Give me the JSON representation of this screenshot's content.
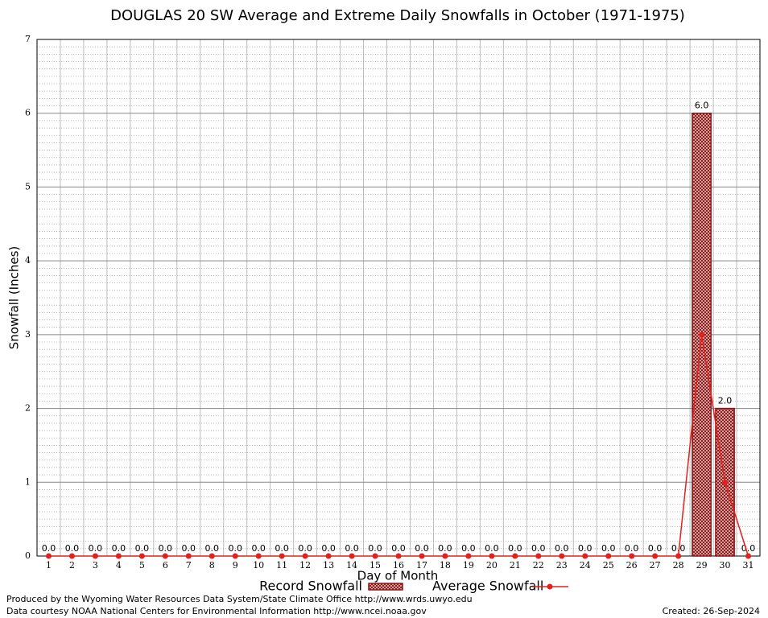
{
  "chart_data": {
    "type": "bar",
    "title": "DOUGLAS 20 SW Average and Extreme Daily Snowfalls in October (1971-1975)",
    "x_label": "Day of Month",
    "y_label": "Snowfall (Inches)",
    "categories": [
      "1",
      "2",
      "3",
      "4",
      "5",
      "6",
      "7",
      "8",
      "9",
      "10",
      "11",
      "12",
      "13",
      "14",
      "15",
      "16",
      "17",
      "18",
      "19",
      "20",
      "21",
      "22",
      "23",
      "24",
      "25",
      "26",
      "27",
      "28",
      "29",
      "30",
      "31"
    ],
    "series": [
      {
        "name": "Record Snowfall",
        "type": "bar",
        "color": "#8b1010",
        "values": [
          0,
          0,
          0,
          0,
          0,
          0,
          0,
          0,
          0,
          0,
          0,
          0,
          0,
          0,
          0,
          0,
          0,
          0,
          0,
          0,
          0,
          0,
          0,
          0,
          0,
          0,
          0,
          0,
          6,
          2,
          0
        ],
        "value_labels": [
          "0.0",
          "0.0",
          "0.0",
          "0.0",
          "0.0",
          "0.0",
          "0.0",
          "0.0",
          "0.0",
          "0.0",
          "0.0",
          "0.0",
          "0.0",
          "0.0",
          "0.0",
          "0.0",
          "0.0",
          "0.0",
          "0.0",
          "0.0",
          "0.0",
          "0.0",
          "0.0",
          "0.0",
          "0.0",
          "0.0",
          "0.0",
          "0.0",
          "6.0",
          "2.0",
          "0.0"
        ]
      },
      {
        "name": "Average Snowfall",
        "type": "line",
        "color": "#e3201e",
        "values": [
          0,
          0,
          0,
          0,
          0,
          0,
          0,
          0,
          0,
          0,
          0,
          0,
          0,
          0,
          0,
          0,
          0,
          0,
          0,
          0,
          0,
          0,
          0,
          0,
          0,
          0,
          0,
          0,
          3,
          1,
          0
        ]
      }
    ],
    "ylim": [
      0,
      7
    ],
    "yticks": [
      0,
      1,
      2,
      3,
      4,
      5,
      6,
      7
    ],
    "grid": true,
    "credits": [
      "Produced by the Wyoming Water Resources Data System/State Climate Office http://www.wrds.uwyo.edu",
      "Data courtesy NOAA National Centers for Environmental Information http://www.ncei.noaa.gov"
    ],
    "created": "Created:  26-Sep-2024"
  }
}
